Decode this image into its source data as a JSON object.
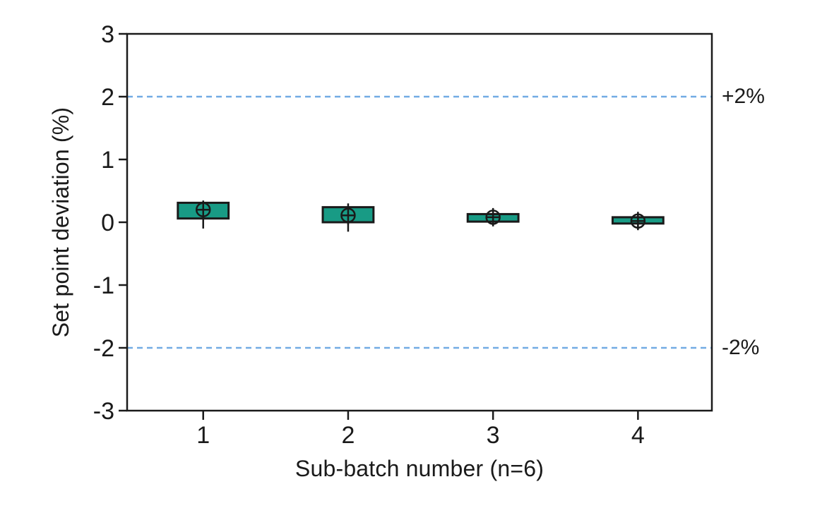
{
  "chart_data": {
    "type": "boxplot",
    "title": "",
    "xlabel": "Sub-batch number (n=6)",
    "ylabel": "Set point deviation (%)",
    "xlim": [
      0.475,
      4.51
    ],
    "ylim": [
      -3,
      3
    ],
    "yticks": [
      "3",
      "2",
      "1",
      "0",
      "-1",
      "-2",
      "-3"
    ],
    "ytick_values": [
      3,
      2,
      1,
      0,
      -1,
      -2,
      -3
    ],
    "xticks": [
      "1",
      "2",
      "3",
      "4"
    ],
    "xtick_values": [
      1,
      2,
      3,
      4
    ],
    "grid": false,
    "legend": null,
    "reference_lines": [
      {
        "value": 2,
        "label": "+2%",
        "style": "dashed"
      },
      {
        "value": -2,
        "label": "-2%",
        "style": "dashed"
      }
    ],
    "series": [
      {
        "x": 1,
        "q1": 0.06,
        "q3": 0.31,
        "mean": 0.2,
        "whisker_low": -0.1,
        "whisker_high": 0.31
      },
      {
        "x": 2,
        "q1": 0.0,
        "q3": 0.24,
        "mean": 0.11,
        "whisker_low": -0.15,
        "whisker_high": 0.3
      },
      {
        "x": 3,
        "q1": 0.01,
        "q3": 0.13,
        "mean": 0.08,
        "whisker_low": -0.03,
        "whisker_high": 0.17
      },
      {
        "x": 4,
        "q1": -0.02,
        "q3": 0.08,
        "mean": 0.02,
        "whisker_low": -0.11,
        "whisker_high": 0.13
      }
    ],
    "box_width": 0.35,
    "mean_marker": "circle-plus",
    "colors": {
      "box_fill": "#189b85",
      "box_edge": "#1a1a1a",
      "axis": "#1a1a1a",
      "text": "#1a1a1a",
      "limit_line": "#72abe4",
      "background": "#ffffff"
    }
  }
}
